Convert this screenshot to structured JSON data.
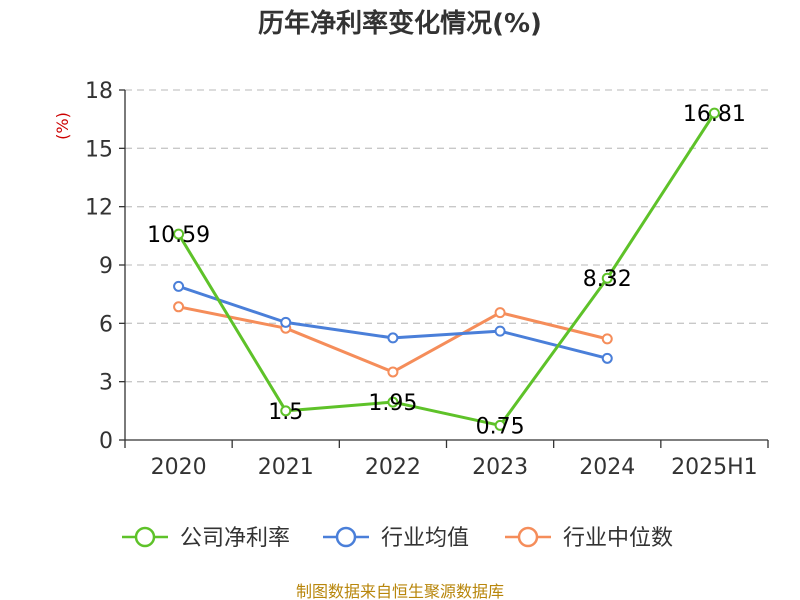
{
  "chart_data": {
    "type": "line",
    "title": "历年净利率变化情况(%)",
    "ylabel": "(%)",
    "categories": [
      "2020",
      "2021",
      "2022",
      "2023",
      "2024",
      "2025H1"
    ],
    "ylim": [
      0,
      18
    ],
    "yticks": [
      0,
      3,
      6,
      9,
      12,
      15,
      18
    ],
    "grid": true,
    "legend_position": "bottom",
    "series": [
      {
        "name": "公司净利率",
        "color": "#5ec229",
        "values": [
          10.59,
          1.5,
          1.95,
          0.75,
          8.32,
          16.81
        ],
        "labels": [
          "10.59",
          "1.5",
          "1.95",
          "0.75",
          "8.32",
          "16.81"
        ]
      },
      {
        "name": "行业均值",
        "color": "#4a7fd9",
        "values": [
          7.9,
          6.05,
          5.25,
          5.6,
          4.2,
          null
        ]
      },
      {
        "name": "行业中位数",
        "color": "#f58d5a",
        "values": [
          6.85,
          5.75,
          3.5,
          6.55,
          5.2,
          null
        ]
      }
    ]
  },
  "source": "制图数据来自恒生聚源数据库"
}
